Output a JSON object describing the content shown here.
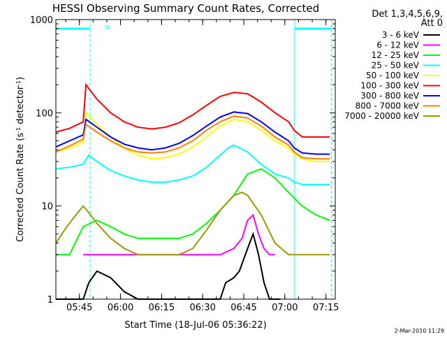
{
  "colors": {
    "background": "#ffffff",
    "axis": "#000000",
    "night_marker": "#00ffff"
  },
  "chart_data": {
    "type": "line",
    "title": "HESSI Observing Summary Count Rates, Corrected",
    "xlabel": "Start Time (18-Jul-06 05:36:22)",
    "ylabel_prefix": "Corrected Count Rate (s",
    "ylabel_sup1": "-1",
    "ylabel_middle": " detector",
    "ylabel_sup2": "-1",
    "ylabel_suffix": ")",
    "y_scale": "log",
    "ylim": [
      1,
      1000
    ],
    "xlim_minutes_after_0536": [
      0,
      102
    ],
    "xtick_labels": [
      "05:45",
      "06:00",
      "06:15",
      "06:30",
      "06:45",
      "07:00",
      "07:15"
    ],
    "xtick_minutes_after_0536": [
      8.6,
      23.6,
      38.6,
      53.6,
      68.6,
      83.6,
      98.6
    ],
    "ytick_labels": [
      "1",
      "10",
      "100",
      "1000"
    ],
    "ytick_values": [
      1,
      10,
      100,
      1000
    ],
    "legend_header_line1": "Det 1,3,4,5,6,9,",
    "legend_header_line2": "Att 0",
    "legend_position": "top-right",
    "night_interval_marks_minutes": [
      0,
      12.5,
      87.2,
      100.6
    ],
    "saa_flag_label": "N",
    "footer_date": "2-Mar-2010 11:29",
    "series": [
      {
        "name": "3 - 6 keV",
        "color": "#000000",
        "x": [
          0,
          10,
          12,
          15,
          20,
          25,
          30,
          35,
          40,
          45,
          50,
          55,
          60,
          62,
          65,
          67,
          70,
          72,
          74,
          76,
          78,
          80,
          82
        ],
        "y": [
          1,
          1,
          1.5,
          2,
          1.7,
          1.2,
          1,
          1,
          1,
          1,
          1,
          1,
          1,
          1.5,
          1.7,
          2.0,
          3.5,
          5,
          3,
          1.5,
          1,
          1,
          1
        ]
      },
      {
        "name": "6 - 12 keV",
        "color": "#ff00ff",
        "x": [
          10,
          15,
          20,
          25,
          30,
          35,
          40,
          45,
          50,
          55,
          60,
          65,
          68,
          70,
          72,
          74,
          76,
          78,
          80
        ],
        "y": [
          3.0,
          3.0,
          3.0,
          3.0,
          3.0,
          3.0,
          3.0,
          3.0,
          3.0,
          3.0,
          3.0,
          3.5,
          4.5,
          7,
          8,
          5,
          3.5,
          3.0,
          3.0
        ]
      },
      {
        "name": "12 - 25 keV",
        "color": "#00ff00",
        "x": [
          0,
          5,
          10,
          15,
          20,
          25,
          30,
          35,
          40,
          45,
          50,
          55,
          60,
          65,
          70,
          75,
          80,
          85,
          90,
          95,
          100
        ],
        "y": [
          3.0,
          3.0,
          6,
          7,
          6,
          5,
          4.5,
          4.5,
          4.5,
          4.5,
          5,
          6.5,
          9,
          13,
          22,
          25,
          20,
          14,
          10,
          8,
          7
        ]
      },
      {
        "name": "25 - 50 keV",
        "color": "#00ffff",
        "x": [
          0,
          5,
          10,
          12,
          15,
          20,
          25,
          30,
          35,
          40,
          45,
          50,
          55,
          60,
          63,
          65,
          70,
          75,
          80,
          85,
          87,
          90,
          95,
          100
        ],
        "y": [
          25,
          26,
          28,
          35,
          30,
          24,
          21,
          19,
          18,
          18,
          19,
          21,
          26,
          35,
          42,
          45,
          38,
          28,
          22,
          20,
          18,
          17,
          17,
          17
        ]
      },
      {
        "name": "50 - 100 keV",
        "color": "#ffff00",
        "x": [
          0,
          5,
          10,
          11,
          15,
          20,
          25,
          30,
          35,
          40,
          45,
          50,
          55,
          60,
          65,
          70,
          75,
          80,
          85,
          87,
          90,
          95,
          100
        ],
        "y": [
          38,
          42,
          48,
          100,
          75,
          55,
          42,
          35,
          32,
          33,
          36,
          43,
          55,
          72,
          85,
          80,
          65,
          50,
          42,
          36,
          32,
          30,
          30
        ]
      },
      {
        "name": "100 - 300 keV",
        "color": "#ff0000",
        "x": [
          0,
          5,
          10,
          11,
          15,
          20,
          25,
          30,
          35,
          40,
          45,
          50,
          55,
          60,
          65,
          70,
          75,
          80,
          85,
          87,
          90,
          95,
          100
        ],
        "y": [
          62,
          68,
          80,
          200,
          140,
          100,
          80,
          70,
          67,
          70,
          78,
          95,
          120,
          150,
          165,
          160,
          130,
          100,
          80,
          65,
          55,
          55,
          55
        ]
      },
      {
        "name": "300 - 800 keV",
        "color": "#0000ff",
        "x": [
          0,
          5,
          10,
          11,
          15,
          20,
          25,
          30,
          35,
          40,
          45,
          50,
          55,
          60,
          65,
          70,
          75,
          80,
          85,
          87,
          90,
          95,
          100
        ],
        "y": [
          43,
          50,
          58,
          85,
          70,
          55,
          46,
          42,
          40,
          42,
          47,
          57,
          72,
          90,
          102,
          98,
          80,
          62,
          50,
          42,
          37,
          36,
          36
        ]
      },
      {
        "name": "800 - 7000 keV",
        "color": "#ff8000",
        "x": [
          0,
          5,
          10,
          11,
          15,
          20,
          25,
          30,
          35,
          40,
          45,
          50,
          55,
          60,
          65,
          70,
          75,
          80,
          85,
          87,
          90,
          95,
          100
        ],
        "y": [
          38,
          44,
          52,
          75,
          62,
          50,
          42,
          38,
          37,
          38,
          42,
          50,
          65,
          80,
          92,
          88,
          72,
          55,
          45,
          38,
          33,
          32,
          32
        ]
      },
      {
        "name": "7000 - 20000 keV",
        "color": "#999900",
        "x": [
          0,
          4,
          8,
          10,
          12,
          15,
          20,
          25,
          30,
          35,
          40,
          45,
          50,
          55,
          60,
          65,
          68,
          70,
          75,
          80,
          85,
          90,
          95,
          100
        ],
        "y": [
          4,
          6,
          8.5,
          10,
          8.5,
          6.5,
          4.5,
          3.5,
          3.0,
          3.0,
          3.0,
          3.0,
          3.5,
          5.5,
          9,
          13,
          14,
          13,
          8,
          4,
          3.0,
          3.0,
          3.0,
          3.0
        ]
      }
    ]
  }
}
